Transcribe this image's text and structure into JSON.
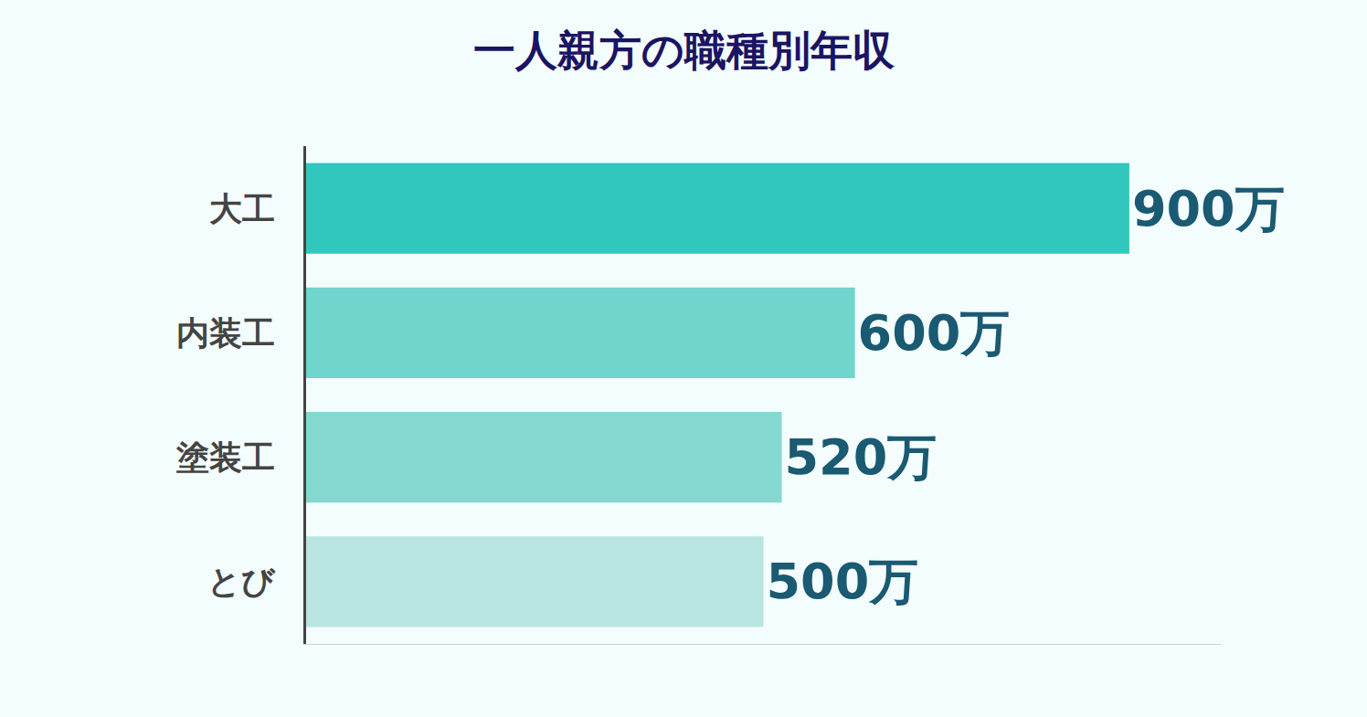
{
  "chart_data": {
    "type": "bar",
    "title": "一人親方の職種別年収",
    "categories": [
      "大工",
      "内装工",
      "塗装工",
      "とび"
    ],
    "values": [
      900,
      600,
      520,
      500
    ],
    "value_labels": [
      "900万",
      "600万",
      "520万",
      "500万"
    ],
    "colors": [
      "#31c7bd",
      "#6fd5cd",
      "#84d8d0",
      "#b9e5e1"
    ],
    "orientation": "horizontal",
    "data_labels": true,
    "tick_labels": "y",
    "xlim": [
      0,
      1000
    ],
    "grid": false
  }
}
